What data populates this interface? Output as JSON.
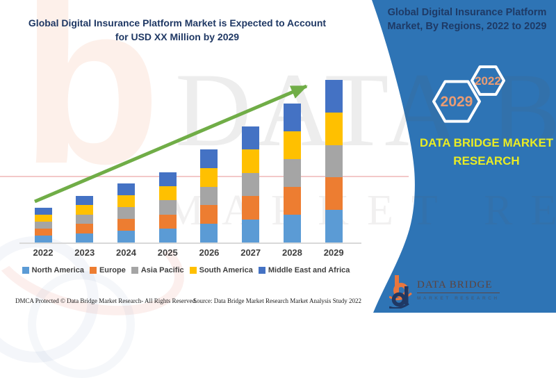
{
  "page": {
    "chart_title": "Global Digital Insurance Platform Market is Expected to Account for USD XX Million by 2029",
    "sidebar_title": "Global Digital Insurance Platform Market, By Regions, 2022 to 2029",
    "brand_text": "DATA BRIDGE MARKET RESEARCH",
    "hexagons": {
      "back_year": "2022",
      "front_year": "2029"
    },
    "logo": {
      "name": "DATA BRIDGE",
      "subtitle": "MARKET RESEARCH"
    },
    "footer": {
      "dmca": "DMCA Protected © Data Bridge Market Research- All Rights Reserved.",
      "source": "Source: Data Bridge Market Research Market Analysis Study 2022"
    },
    "watermark": {
      "line1": "DATA BRIDGE",
      "line2": "MARKET RESEARCH",
      "logo_letter": "b"
    },
    "colors": {
      "sidebar_blue": "#2E74B5",
      "title_navy": "#1F3864",
      "brand_yellow": "#E9EC25",
      "hexagon_text_orange": "#EA9C74",
      "arrow_green": "#70AD47",
      "axis_gray": "#D9D9D9"
    }
  },
  "chart_data": {
    "type": "bar",
    "stacked": true,
    "title": "Global Digital Insurance Platform Market is Expected to Account for USD XX Million by 2029",
    "xlabel": "",
    "ylabel": "",
    "value_axis_visible": false,
    "values_note": "No numeric axis shown (values masked as USD XX Million); series values are estimated relative units read from bar pixel heights, five roughly equal regional segments per year",
    "legend_position": "bottom",
    "annotations": [
      "upward green trend arrow from 2022 bar to 2029 bar"
    ],
    "categories": [
      "2022",
      "2023",
      "2024",
      "2025",
      "2026",
      "2027",
      "2028",
      "2029"
    ],
    "series": [
      {
        "name": "North America",
        "color": "#5B9BD5",
        "values": [
          10,
          13.4,
          17,
          20.2,
          26.8,
          33.4,
          40,
          46.8
        ]
      },
      {
        "name": "Europe",
        "color": "#ED7D31",
        "values": [
          10,
          13.4,
          17,
          20.2,
          26.8,
          33.4,
          40,
          46.8
        ]
      },
      {
        "name": "Asia Pacific",
        "color": "#A5A5A5",
        "values": [
          10,
          13.4,
          17,
          20.2,
          26.8,
          33.4,
          40,
          46.8
        ]
      },
      {
        "name": "South America",
        "color": "#FFC000",
        "values": [
          10,
          13.4,
          17,
          20.2,
          26.8,
          33.4,
          40,
          46.8
        ]
      },
      {
        "name": "Middle East and Africa",
        "color": "#4472C4",
        "values": [
          10,
          13.4,
          17,
          20.2,
          26.8,
          33.4,
          40,
          46.8
        ]
      }
    ]
  }
}
